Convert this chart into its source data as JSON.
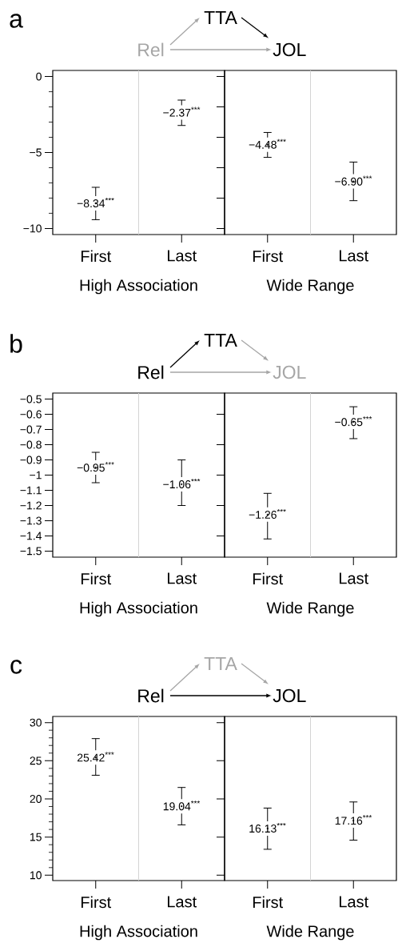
{
  "chart_data": [
    {
      "type": "scatter",
      "title": "a",
      "xlabel": "High Association",
      "categories": [
        "First",
        "Last"
      ],
      "color": "#000000",
      "marker": "none",
      "values": [
        -8.34,
        -2.37
      ],
      "value_labels": [
        "−8.34$^{***}$",
        "−2.37$^{***}$"
      ],
      "errors": [
        [
          -9.42,
          -7.29
        ],
        [
          -3.22,
          -1.55
        ]
      ],
      "ylim": [
        -10.4,
        0.4
      ],
      "yticks": [
        {
          "value": 0,
          "label": "0"
        },
        {
          "value": -1,
          "label": null
        },
        {
          "value": -2,
          "label": null
        },
        {
          "value": -3,
          "label": null
        },
        {
          "value": -4,
          "label": null
        },
        {
          "value": -5,
          "label": "−5"
        },
        {
          "value": -6,
          "label": null
        },
        {
          "value": -7,
          "label": null
        },
        {
          "value": -8,
          "label": null
        },
        {
          "value": -9,
          "label": null
        },
        {
          "value": -10,
          "label": "−10"
        }
      ],
      "annotations": [
        "Rel",
        "TTA",
        "JOL"
      ]
    },
    {
      "type": "scatter",
      "xlabel": "Wide Range",
      "categories": [
        "First",
        "Last"
      ],
      "color": "#000000",
      "marker": "none",
      "values": [
        -4.48,
        -6.9
      ],
      "value_labels": [
        "−4.48$^{***}$",
        "−6.90$^{***}$"
      ],
      "errors": [
        [
          -5.32,
          -3.68
        ],
        [
          -8.17,
          -5.63
        ]
      ],
      "ylim": [
        -10.4,
        0.4
      ],
      "tick_labels": "x"
    },
    {
      "type": "scatter",
      "title": "b",
      "xlabel": "High Association",
      "categories": [
        "First",
        "Last"
      ],
      "color": "#000000",
      "marker": "none",
      "values": [
        -0.95,
        -1.06
      ],
      "value_labels": [
        "−0.95$^{***}$",
        "−1.06$^{***}$"
      ],
      "errors": [
        [
          -1.05,
          -0.85
        ],
        [
          -1.2,
          -0.9
        ]
      ],
      "ylim": [
        -1.54,
        -0.46
      ],
      "yticks": [
        {
          "value": -0.5,
          "label": "−0.5"
        },
        {
          "value": -0.6,
          "label": "−0.6"
        },
        {
          "value": -0.7,
          "label": "−0.7"
        },
        {
          "value": -0.8,
          "label": "−0.8"
        },
        {
          "value": -0.9,
          "label": "−0.9"
        },
        {
          "value": -1,
          "label": "−1"
        },
        {
          "value": -1.1,
          "label": "−1.1"
        },
        {
          "value": -1.2,
          "label": "−1.2"
        },
        {
          "value": -1.3,
          "label": "−1.3"
        },
        {
          "value": -1.4,
          "label": "−1.4"
        },
        {
          "value": -1.5,
          "label": "−1.5"
        }
      ],
      "annotations": [
        "Rel",
        "TTA",
        "JOL"
      ]
    },
    {
      "type": "scatter",
      "xlabel": "Wide Range",
      "categories": [
        "First",
        "Last"
      ],
      "color": "#000000",
      "marker": "none",
      "values": [
        -1.26,
        -0.65
      ],
      "value_labels": [
        "−1.26$^{***}$",
        "−0.65$^{***}$"
      ],
      "errors": [
        [
          -1.42,
          -1.12
        ],
        [
          -0.76,
          -0.55
        ]
      ],
      "ylim": [
        -1.54,
        -0.46
      ],
      "tick_labels": "x"
    },
    {
      "type": "scatter",
      "title": "c",
      "xlabel": "High Association",
      "categories": [
        "First",
        "Last"
      ],
      "color": "#000000",
      "marker": "none",
      "values": [
        25.42,
        19.04
      ],
      "value_labels": [
        "25.42$^{***}$",
        "19.04$^{***}$"
      ],
      "errors": [
        [
          23.1,
          27.9
        ],
        [
          16.6,
          21.5
        ]
      ],
      "ylim": [
        9.3,
        30.8
      ],
      "yticks": [
        10,
        {
          "value": 11,
          "label": null
        },
        {
          "value": 12,
          "label": null
        },
        {
          "value": 13,
          "label": null
        },
        {
          "value": 14,
          "label": null
        },
        15,
        {
          "value": 16,
          "label": null
        },
        {
          "value": 17,
          "label": null
        },
        {
          "value": 18,
          "label": null
        },
        {
          "value": 19,
          "label": null
        },
        20,
        {
          "value": 21,
          "label": null
        },
        {
          "value": 22,
          "label": null
        },
        {
          "value": 23,
          "label": null
        },
        {
          "value": 24,
          "label": null
        },
        25,
        {
          "value": 26,
          "label": null
        },
        {
          "value": 27,
          "label": null
        },
        {
          "value": 28,
          "label": null
        },
        {
          "value": 29,
          "label": null
        },
        30
      ],
      "annotations": [
        "Rel",
        "TTA",
        "JOL"
      ]
    },
    {
      "type": "scatter",
      "xlabel": "Wide Range",
      "categories": [
        "First",
        "Last"
      ],
      "color": "#000000",
      "marker": "none",
      "values": [
        16.13,
        17.16
      ],
      "value_labels": [
        "16.13$^{***}$",
        "17.16$^{***}$"
      ],
      "errors": [
        [
          13.4,
          18.8
        ],
        [
          14.6,
          19.6
        ]
      ],
      "ylim": [
        9.3,
        30.8
      ],
      "tick_labels": "x"
    }
  ]
}
